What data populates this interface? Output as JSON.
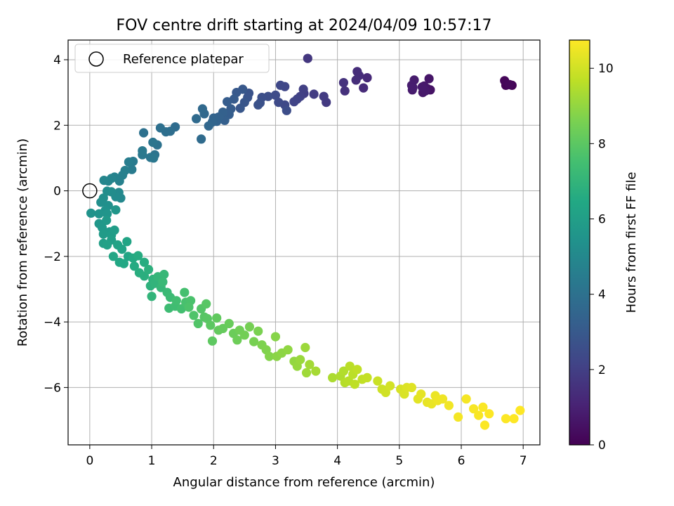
{
  "chart_data": {
    "type": "scatter",
    "title": "FOV centre drift starting at 2024/04/09 10:57:17",
    "xlabel": "Angular distance from reference (arcmin)",
    "ylabel": "Rotation from reference (arcmin)",
    "xlim": [
      -0.35,
      7.27
    ],
    "ylim": [
      -7.75,
      4.6
    ],
    "xticks": [
      0,
      1,
      2,
      3,
      4,
      5,
      6,
      7
    ],
    "yticks": [
      -6,
      -4,
      -2,
      0,
      2,
      4
    ],
    "grid": true,
    "legend": {
      "position": "top-left",
      "entries": [
        "Reference platepar"
      ]
    },
    "reference_point": {
      "x": 0,
      "y": 0
    },
    "colorbar": {
      "label": "Hours from first FF file",
      "colormap": "viridis",
      "range": [
        0,
        10.75
      ],
      "ticks": [
        0,
        2,
        4,
        6,
        8,
        10
      ]
    },
    "series": [
      {
        "points": [
          [
            6.82,
            3.22,
            0.05
          ],
          [
            6.72,
            3.22,
            0.1
          ],
          [
            6.7,
            3.36,
            0.15
          ],
          [
            6.78,
            3.24,
            0.2
          ],
          [
            5.5,
            3.08,
            0.55
          ],
          [
            5.45,
            3.12,
            0.6
          ],
          [
            5.48,
            3.42,
            0.65
          ],
          [
            5.38,
            3.0,
            0.7
          ],
          [
            5.4,
            3.2,
            0.72
          ],
          [
            5.42,
            3.05,
            0.75
          ],
          [
            5.37,
            3.17,
            0.78
          ],
          [
            5.21,
            3.08,
            0.8
          ],
          [
            5.24,
            3.38,
            0.82
          ],
          [
            5.2,
            3.22,
            0.85
          ],
          [
            5.22,
            3.15,
            0.87
          ],
          [
            4.48,
            3.45,
            1.25
          ],
          [
            4.42,
            3.14,
            1.3
          ],
          [
            4.35,
            3.52,
            1.35
          ],
          [
            4.32,
            3.64,
            1.38
          ],
          [
            4.3,
            3.38,
            1.4
          ],
          [
            4.12,
            3.05,
            1.5
          ],
          [
            4.1,
            3.3,
            1.55
          ],
          [
            3.52,
            4.04,
            1.7
          ],
          [
            3.82,
            2.7,
            1.8
          ],
          [
            3.78,
            2.88,
            1.85
          ],
          [
            3.62,
            2.95,
            1.9
          ],
          [
            3.46,
            2.97,
            1.95
          ],
          [
            3.45,
            3.1,
            2.0
          ],
          [
            3.4,
            2.88,
            2.05
          ],
          [
            3.35,
            2.8,
            2.1
          ],
          [
            3.3,
            2.72,
            2.15
          ],
          [
            3.15,
            3.18,
            2.25
          ],
          [
            3.08,
            3.22,
            2.3
          ],
          [
            3.15,
            2.62,
            2.35
          ],
          [
            3.05,
            2.7,
            2.4
          ],
          [
            3.0,
            2.92,
            2.45
          ],
          [
            3.18,
            2.45,
            2.5
          ],
          [
            2.88,
            2.88,
            2.55
          ],
          [
            2.78,
            2.85,
            2.6
          ],
          [
            2.75,
            2.68,
            2.65
          ],
          [
            2.72,
            2.62,
            2.7
          ],
          [
            2.57,
            2.98,
            2.75
          ],
          [
            2.55,
            2.85,
            2.8
          ],
          [
            2.5,
            2.7,
            2.85
          ],
          [
            2.43,
            2.52,
            2.9
          ],
          [
            2.47,
            3.1,
            2.95
          ],
          [
            2.37,
            3.0,
            3.0
          ],
          [
            2.33,
            2.8,
            3.05
          ],
          [
            2.28,
            2.5,
            3.1
          ],
          [
            2.22,
            2.72,
            3.15
          ],
          [
            2.25,
            2.33,
            3.2
          ],
          [
            2.18,
            2.15,
            3.25
          ],
          [
            2.15,
            2.4,
            3.3
          ],
          [
            2.08,
            2.25,
            3.35
          ],
          [
            2.05,
            2.12,
            3.4
          ],
          [
            2.0,
            2.22,
            3.45
          ],
          [
            1.98,
            2.1,
            3.5
          ],
          [
            1.92,
            1.98,
            3.55
          ],
          [
            1.85,
            2.35,
            3.6
          ],
          [
            1.82,
            2.5,
            3.65
          ],
          [
            1.72,
            2.2,
            3.7
          ],
          [
            1.8,
            1.58,
            3.75
          ],
          [
            1.38,
            1.95,
            3.8
          ],
          [
            1.3,
            1.82,
            3.85
          ],
          [
            1.23,
            1.8,
            3.9
          ],
          [
            1.14,
            1.92,
            3.95
          ],
          [
            0.87,
            1.77,
            4.0
          ],
          [
            1.09,
            1.4,
            4.05
          ],
          [
            1.05,
            1.1,
            4.1
          ],
          [
            1.02,
            1.48,
            4.15
          ],
          [
            0.98,
            1.02,
            4.2
          ],
          [
            1.03,
            1.0,
            4.25
          ],
          [
            0.85,
            1.1,
            4.3
          ],
          [
            0.85,
            1.22,
            4.35
          ],
          [
            0.7,
            0.9,
            4.4
          ],
          [
            0.68,
            0.65,
            4.45
          ],
          [
            0.63,
            0.88,
            4.5
          ],
          [
            0.57,
            0.62,
            4.6
          ],
          [
            0.53,
            0.48,
            4.65
          ],
          [
            0.48,
            0.3,
            4.7
          ],
          [
            0.4,
            0.42,
            4.75
          ],
          [
            0.35,
            0.38,
            4.8
          ],
          [
            0.3,
            0.3,
            4.85
          ],
          [
            0.23,
            0.32,
            4.9
          ],
          [
            0.5,
            -0.22,
            5.0
          ],
          [
            0.47,
            -0.05,
            5.05
          ],
          [
            0.42,
            -0.18,
            5.1
          ],
          [
            0.35,
            -0.03,
            5.15
          ],
          [
            0.28,
            -0.01,
            5.2
          ],
          [
            0.22,
            -0.22,
            5.25
          ],
          [
            0.18,
            -0.35,
            5.3
          ],
          [
            0.3,
            -0.45,
            5.35
          ],
          [
            0.25,
            -0.6,
            5.4
          ],
          [
            0.02,
            -0.68,
            5.45
          ],
          [
            0.15,
            -0.7,
            5.5
          ],
          [
            0.28,
            -0.7,
            5.55
          ],
          [
            0.42,
            -0.58,
            5.6
          ],
          [
            0.15,
            -1.0,
            5.65
          ],
          [
            0.2,
            -1.12,
            5.7
          ],
          [
            0.27,
            -0.9,
            5.75
          ],
          [
            0.32,
            -1.25,
            5.8
          ],
          [
            0.22,
            -1.32,
            5.85
          ],
          [
            0.35,
            -1.35,
            5.9
          ],
          [
            0.4,
            -1.2,
            5.95
          ],
          [
            0.35,
            -1.5,
            6.0
          ],
          [
            0.22,
            -1.6,
            6.05
          ],
          [
            0.28,
            -1.65,
            6.1
          ],
          [
            0.45,
            -1.65,
            6.15
          ],
          [
            0.52,
            -1.78,
            6.2
          ],
          [
            0.6,
            -1.55,
            6.25
          ],
          [
            0.62,
            -2.0,
            6.3
          ],
          [
            0.38,
            -2.0,
            6.35
          ],
          [
            0.48,
            -2.18,
            6.4
          ],
          [
            0.55,
            -2.22,
            6.45
          ],
          [
            0.7,
            -2.05,
            6.5
          ],
          [
            0.72,
            -2.3,
            6.55
          ],
          [
            0.78,
            -1.98,
            6.6
          ],
          [
            0.88,
            -2.18,
            6.65
          ],
          [
            0.8,
            -2.5,
            6.7
          ],
          [
            0.88,
            -2.6,
            6.75
          ],
          [
            0.95,
            -2.4,
            6.8
          ],
          [
            0.98,
            -2.9,
            6.85
          ],
          [
            1.02,
            -2.7,
            6.9
          ],
          [
            1.05,
            -2.82,
            6.95
          ],
          [
            1.0,
            -3.22,
            7.0
          ],
          [
            1.1,
            -2.62,
            7.05
          ],
          [
            1.15,
            -2.95,
            7.1
          ],
          [
            1.2,
            -2.55,
            7.15
          ],
          [
            1.18,
            -2.78,
            7.2
          ],
          [
            1.25,
            -3.1,
            7.25
          ],
          [
            1.3,
            -3.25,
            7.3
          ],
          [
            1.28,
            -3.58,
            7.35
          ],
          [
            1.38,
            -3.52,
            7.4
          ],
          [
            1.4,
            -3.35,
            7.45
          ],
          [
            1.48,
            -3.6,
            7.5
          ],
          [
            1.53,
            -3.1,
            7.55
          ],
          [
            1.55,
            -3.4,
            7.6
          ],
          [
            1.63,
            -3.35,
            7.65
          ],
          [
            1.6,
            -3.55,
            7.7
          ],
          [
            1.68,
            -3.8,
            7.75
          ],
          [
            1.75,
            -4.05,
            7.8
          ],
          [
            1.8,
            -3.6,
            7.85
          ],
          [
            1.85,
            -3.85,
            7.9
          ],
          [
            1.88,
            -3.45,
            7.92
          ],
          [
            1.9,
            -3.9,
            7.95
          ],
          [
            1.95,
            -4.1,
            8.0
          ],
          [
            1.98,
            -4.58,
            8.05
          ],
          [
            2.05,
            -3.88,
            8.1
          ],
          [
            2.08,
            -4.25,
            8.15
          ],
          [
            2.15,
            -4.2,
            8.2
          ],
          [
            2.25,
            -4.05,
            8.25
          ],
          [
            2.32,
            -4.35,
            8.3
          ],
          [
            2.38,
            -4.55,
            8.35
          ],
          [
            2.42,
            -4.25,
            8.4
          ],
          [
            2.5,
            -4.4,
            8.45
          ],
          [
            2.58,
            -4.15,
            8.5
          ],
          [
            2.65,
            -4.6,
            8.55
          ],
          [
            2.72,
            -4.28,
            8.6
          ],
          [
            2.78,
            -4.7,
            8.65
          ],
          [
            2.85,
            -4.85,
            8.7
          ],
          [
            2.9,
            -5.05,
            8.75
          ],
          [
            3.0,
            -4.45,
            8.8
          ],
          [
            3.02,
            -5.05,
            8.85
          ],
          [
            3.1,
            -4.95,
            8.9
          ],
          [
            3.2,
            -4.85,
            8.95
          ],
          [
            3.3,
            -5.2,
            9.0
          ],
          [
            3.35,
            -5.35,
            9.05
          ],
          [
            3.4,
            -5.15,
            9.1
          ],
          [
            3.48,
            -4.78,
            9.15
          ],
          [
            3.5,
            -5.55,
            9.2
          ],
          [
            3.55,
            -5.3,
            9.25
          ],
          [
            3.65,
            -5.5,
            9.3
          ],
          [
            3.92,
            -5.7,
            9.4
          ],
          [
            4.05,
            -5.65,
            9.45
          ],
          [
            4.1,
            -5.5,
            9.5
          ],
          [
            4.12,
            -5.85,
            9.55
          ],
          [
            4.18,
            -5.8,
            9.6
          ],
          [
            4.2,
            -5.35,
            9.62
          ],
          [
            4.25,
            -5.6,
            9.65
          ],
          [
            4.28,
            -5.9,
            9.7
          ],
          [
            4.32,
            -5.45,
            9.72
          ],
          [
            4.4,
            -5.75,
            9.75
          ],
          [
            4.48,
            -5.7,
            9.8
          ],
          [
            4.65,
            -5.8,
            9.9
          ],
          [
            4.72,
            -6.05,
            9.95
          ],
          [
            4.78,
            -6.15,
            10.0
          ],
          [
            4.85,
            -5.95,
            10.05
          ],
          [
            5.02,
            -6.05,
            10.1
          ],
          [
            5.08,
            -6.2,
            10.15
          ],
          [
            5.12,
            -6.0,
            10.2
          ],
          [
            5.2,
            -6.0,
            10.25
          ],
          [
            5.3,
            -6.35,
            10.3
          ],
          [
            5.35,
            -6.2,
            10.35
          ],
          [
            5.45,
            -6.45,
            10.4
          ],
          [
            5.52,
            -6.5,
            10.42
          ],
          [
            5.58,
            -6.25,
            10.45
          ],
          [
            5.62,
            -6.4,
            10.5
          ],
          [
            5.7,
            -6.35,
            10.52
          ],
          [
            5.8,
            -6.55,
            10.55
          ],
          [
            5.95,
            -6.9,
            10.6
          ],
          [
            6.08,
            -6.35,
            10.62
          ],
          [
            6.2,
            -6.65,
            10.65
          ],
          [
            6.28,
            -6.85,
            10.67
          ],
          [
            6.35,
            -6.6,
            10.7
          ],
          [
            6.38,
            -7.15,
            10.72
          ],
          [
            6.45,
            -6.8,
            10.73
          ],
          [
            6.72,
            -6.95,
            10.74
          ],
          [
            6.85,
            -6.95,
            10.75
          ],
          [
            6.95,
            -6.7,
            10.75
          ]
        ]
      }
    ]
  }
}
